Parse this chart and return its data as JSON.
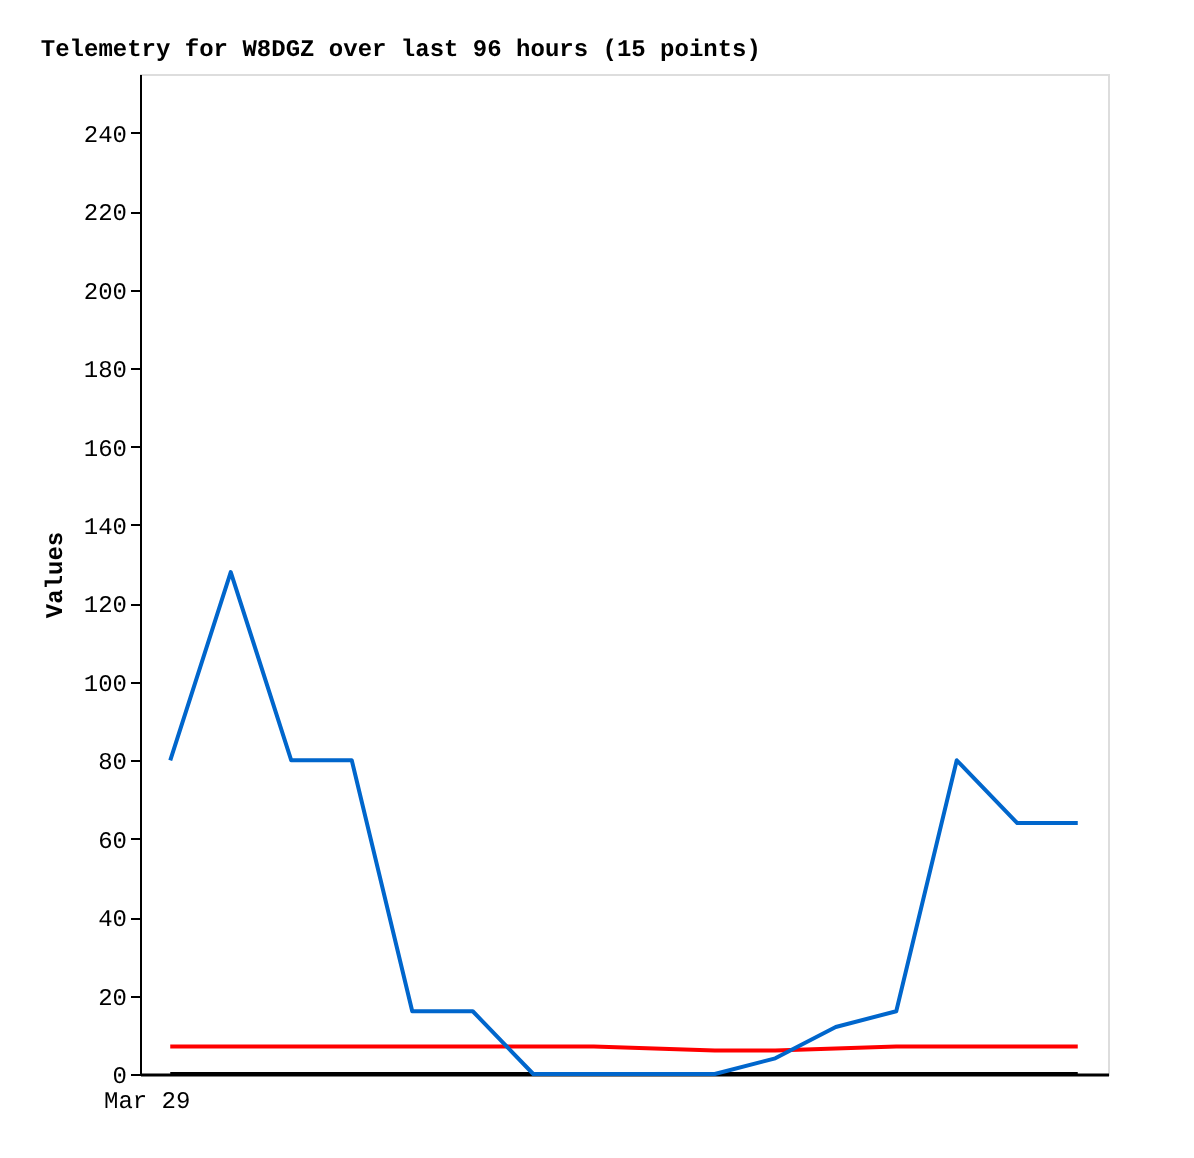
{
  "chart_data": {
    "type": "line",
    "title": "Telemetry for W8DGZ over last 96 hours (15 points)",
    "ylabel": "Values",
    "categories": [
      null,
      null,
      null,
      null,
      null,
      null,
      null,
      null,
      null,
      null,
      null,
      null,
      null,
      null,
      null,
      null
    ],
    "ylim": [
      0,
      255
    ],
    "yticks": [
      0,
      20,
      40,
      60,
      80,
      100,
      120,
      140,
      160,
      180,
      200,
      220,
      240
    ],
    "grid": false,
    "legend": false,
    "marker": "none",
    "line_style": "solid",
    "tick_labels": "y",
    "annotations": [
      "Mar 29"
    ],
    "series": [
      {
        "color": "#000000",
        "values": [
          0,
          0,
          0,
          0,
          0,
          0,
          0,
          0,
          0,
          0,
          0,
          0,
          0,
          0,
          0,
          0
        ]
      },
      {
        "color": "#ff0000",
        "values": [
          7,
          7,
          7,
          7,
          7,
          7,
          7,
          7,
          6.5,
          6,
          6,
          6.5,
          7,
          7,
          7,
          7
        ]
      },
      {
        "color": "#0066cc",
        "values": [
          80,
          128,
          80,
          80,
          16,
          16,
          0,
          0,
          0,
          0,
          4,
          12,
          16,
          80,
          64,
          64
        ]
      }
    ]
  }
}
